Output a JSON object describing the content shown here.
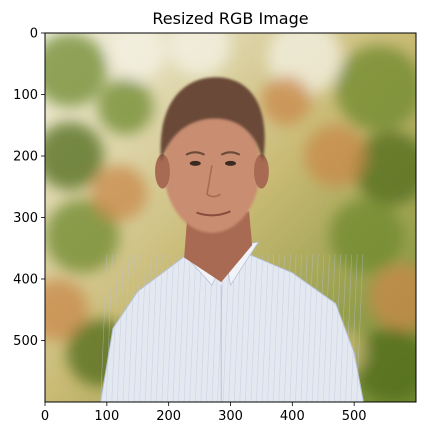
{
  "chart_data": {
    "type": "image",
    "title": "Resized RGB Image",
    "xlabel": "",
    "ylabel": "",
    "xlim": [
      0,
      600
    ],
    "ylim": [
      600,
      0
    ],
    "grid": false,
    "x_ticks": [
      0,
      100,
      200,
      300,
      400,
      500
    ],
    "y_ticks": [
      0,
      100,
      200,
      300,
      400,
      500
    ],
    "image": {
      "subject": "man-portrait-photo"
    },
    "colors": {
      "background_light": "#f4f2e4",
      "background_mid": "#c9ba74",
      "foliage_green": "#6f8a2e",
      "foliage_dark": "#4f6b1e",
      "foliage_orange": "#c98a4a",
      "hair": "#6b4a38",
      "skin": "#c98d72",
      "skin_shadow": "#a86a52",
      "shirt": "#e4e8f1",
      "shirt_stripe": "#b7c3d8",
      "spine": "#000000"
    }
  }
}
